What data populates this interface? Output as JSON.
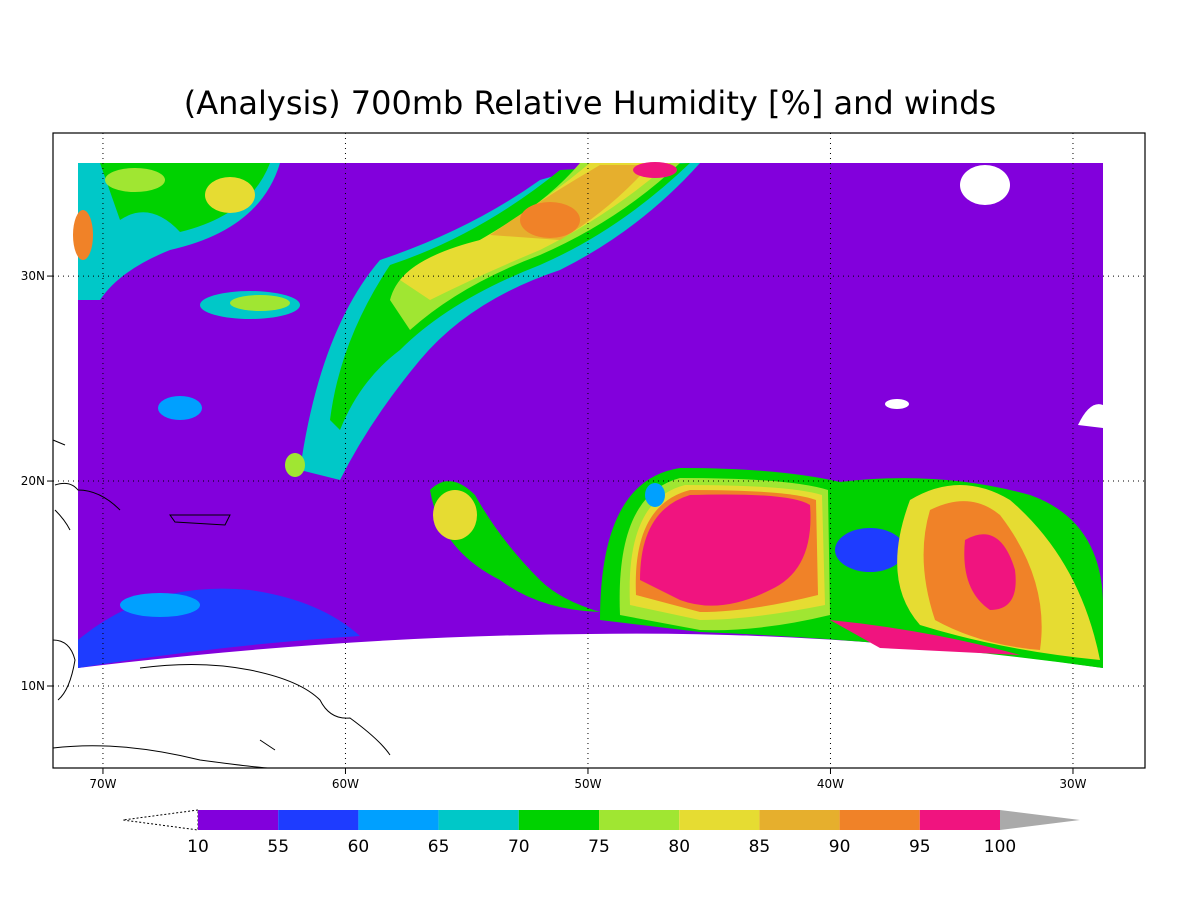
{
  "map": {
    "title": "(Analysis) 700mb Relative Humidity [%] and winds",
    "xlim": [
      -72.06,
      -27.03
    ],
    "ylim": [
      6.0,
      36.98
    ],
    "xticks": [
      {
        "value": -70,
        "label": "70W"
      },
      {
        "value": -60,
        "label": "60W"
      },
      {
        "value": -50,
        "label": "50W"
      },
      {
        "value": -40,
        "label": "40W"
      },
      {
        "value": -30,
        "label": "30W"
      }
    ],
    "yticks": [
      {
        "value": 10,
        "label": "10N"
      },
      {
        "value": 20,
        "label": "20N"
      },
      {
        "value": 30,
        "label": "30N"
      }
    ],
    "grid": true,
    "colorbar": {
      "levels": [
        10,
        55,
        60,
        65,
        70,
        75,
        80,
        85,
        90,
        95,
        100
      ],
      "colors": [
        "#8200dc",
        "#1e3cff",
        "#00a0ff",
        "#00c8c8",
        "#00d200",
        "#a0e632",
        "#e6dc32",
        "#e6af2d",
        "#f08228",
        "#f0147f"
      ],
      "over_color": "#aaaaaa"
    }
  }
}
